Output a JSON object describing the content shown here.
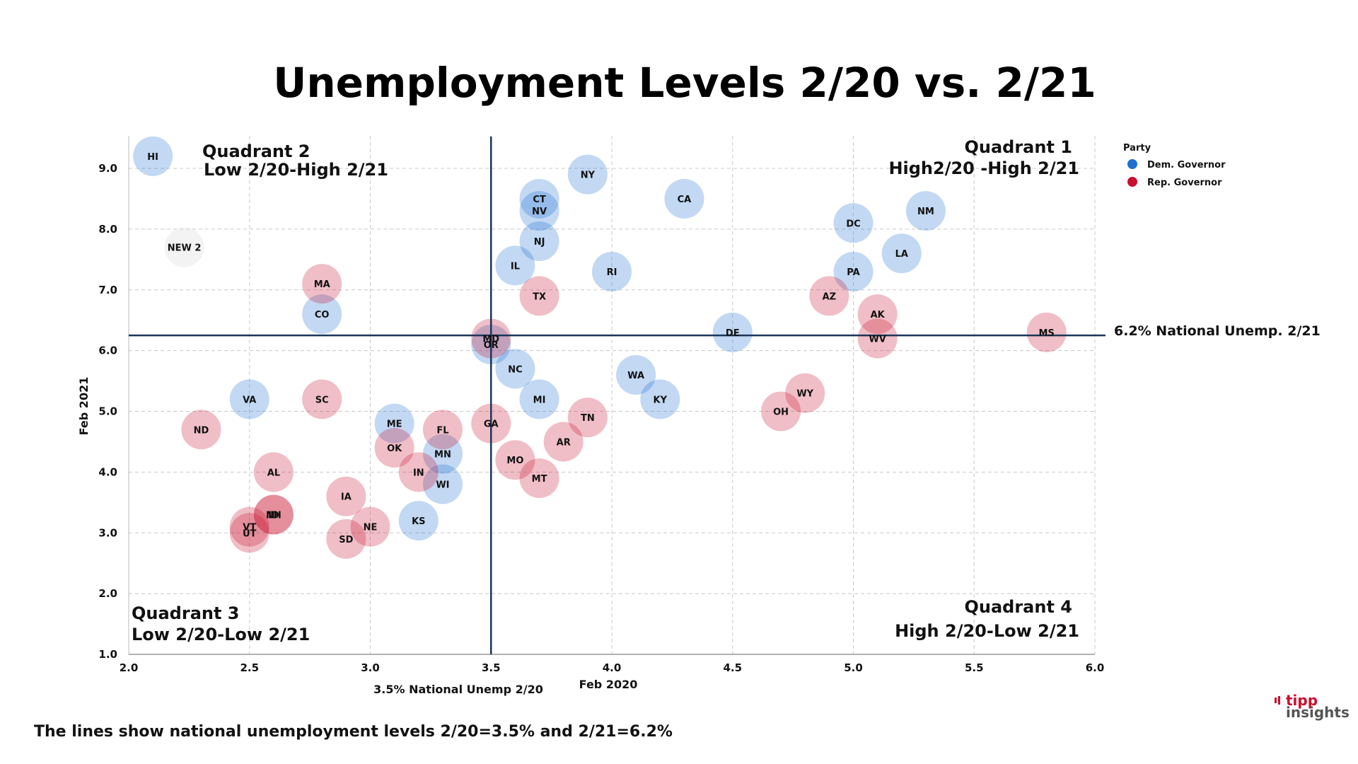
{
  "chart_data": {
    "type": "scatter",
    "title": "Unemployment Levels 2/20 vs. 2/21",
    "xlabel": "Feb 2020",
    "ylabel": "Feb 2021",
    "xlim": [
      2.0,
      6.0
    ],
    "ylim": [
      1.0,
      9.5
    ],
    "x_ticks": [
      "2.0",
      "2.5",
      "3.0",
      "3.5",
      "4.0",
      "4.5",
      "5.0",
      "5.5",
      "6.0"
    ],
    "y_ticks": [
      "1.0",
      "2.0",
      "3.0",
      "4.0",
      "5.0",
      "6.0",
      "7.0",
      "8.0",
      "9.0"
    ],
    "grid": true,
    "legend_title": "Party",
    "legend_position": "top-right",
    "series": [
      {
        "name": "Dem. Governor",
        "color": "#1f6fd1",
        "points": [
          {
            "label": "HI",
            "x": 2.1,
            "y": 9.2
          },
          {
            "label": "NY",
            "x": 3.9,
            "y": 8.9
          },
          {
            "label": "CT",
            "x": 3.7,
            "y": 8.5
          },
          {
            "label": "NV",
            "x": 3.7,
            "y": 8.3
          },
          {
            "label": "CA",
            "x": 4.3,
            "y": 8.5
          },
          {
            "label": "NM",
            "x": 5.3,
            "y": 8.3
          },
          {
            "label": "DC",
            "x": 5.0,
            "y": 8.1
          },
          {
            "label": "NJ",
            "x": 3.7,
            "y": 7.8
          },
          {
            "label": "LA",
            "x": 5.2,
            "y": 7.6
          },
          {
            "label": "IL",
            "x": 3.6,
            "y": 7.4
          },
          {
            "label": "RI",
            "x": 4.0,
            "y": 7.3
          },
          {
            "label": "PA",
            "x": 5.0,
            "y": 7.3
          },
          {
            "label": "CO",
            "x": 2.8,
            "y": 6.6
          },
          {
            "label": "DE",
            "x": 4.5,
            "y": 6.3
          },
          {
            "label": "OR",
            "x": 3.5,
            "y": 6.1
          },
          {
            "label": "NC",
            "x": 3.6,
            "y": 5.7
          },
          {
            "label": "WA",
            "x": 4.1,
            "y": 5.6
          },
          {
            "label": "VA",
            "x": 2.5,
            "y": 5.2
          },
          {
            "label": "MI",
            "x": 3.7,
            "y": 5.2
          },
          {
            "label": "KY",
            "x": 4.2,
            "y": 5.2
          },
          {
            "label": "ME",
            "x": 3.1,
            "y": 4.8
          },
          {
            "label": "MN",
            "x": 3.3,
            "y": 4.3
          },
          {
            "label": "WI",
            "x": 3.3,
            "y": 3.8
          },
          {
            "label": "KS",
            "x": 3.2,
            "y": 3.2
          }
        ]
      },
      {
        "name": "Rep. Governor",
        "color": "#c8102e",
        "points": [
          {
            "label": "MA",
            "x": 2.8,
            "y": 7.1
          },
          {
            "label": "TX",
            "x": 3.7,
            "y": 6.9
          },
          {
            "label": "AZ",
            "x": 4.9,
            "y": 6.9
          },
          {
            "label": "AK",
            "x": 5.1,
            "y": 6.6
          },
          {
            "label": "MD",
            "x": 3.5,
            "y": 6.2
          },
          {
            "label": "WV",
            "x": 5.1,
            "y": 6.2
          },
          {
            "label": "MS",
            "x": 5.8,
            "y": 6.3
          },
          {
            "label": "SC",
            "x": 2.8,
            "y": 5.2
          },
          {
            "label": "WY",
            "x": 4.8,
            "y": 5.3
          },
          {
            "label": "OH",
            "x": 4.7,
            "y": 5.0
          },
          {
            "label": "TN",
            "x": 3.9,
            "y": 4.9
          },
          {
            "label": "GA",
            "x": 3.5,
            "y": 4.8
          },
          {
            "label": "FL",
            "x": 3.3,
            "y": 4.7
          },
          {
            "label": "ND",
            "x": 2.3,
            "y": 4.7
          },
          {
            "label": "AR",
            "x": 3.8,
            "y": 4.5
          },
          {
            "label": "OK",
            "x": 3.1,
            "y": 4.4
          },
          {
            "label": "MO",
            "x": 3.6,
            "y": 4.2
          },
          {
            "label": "AL",
            "x": 2.6,
            "y": 4.0
          },
          {
            "label": "IN",
            "x": 3.2,
            "y": 4.0
          },
          {
            "label": "MT",
            "x": 3.7,
            "y": 3.9
          },
          {
            "label": "IA",
            "x": 2.9,
            "y": 3.6
          },
          {
            "label": "ID",
            "x": 2.6,
            "y": 3.3
          },
          {
            "label": "NH",
            "x": 2.6,
            "y": 3.3
          },
          {
            "label": "NE",
            "x": 3.0,
            "y": 3.1
          },
          {
            "label": "VT",
            "x": 2.5,
            "y": 3.1
          },
          {
            "label": "UT",
            "x": 2.5,
            "y": 3.0
          },
          {
            "label": "SD",
            "x": 2.9,
            "y": 2.9
          }
        ]
      },
      {
        "name": "",
        "color": "#dddddd",
        "points": [
          {
            "label": "NEW 2",
            "x": 2.23,
            "y": 7.7
          }
        ]
      }
    ],
    "reference_lines": [
      {
        "axis": "x",
        "value": 3.5,
        "label": "3.5% National Unemp 2/20"
      },
      {
        "axis": "y",
        "value": 6.25,
        "label": "6.2% National Unemp. 2/21"
      }
    ],
    "annotations": {
      "q1_title": "Quadrant 1",
      "q1_sub": "High2/20 -High 2/21",
      "q2_title": "Quadrant 2",
      "q2_sub": "Low 2/20-High 2/21",
      "q3_title": "Quadrant 3",
      "q3_sub": "Low 2/20-Low 2/21",
      "q4_title": "Quadrant 4",
      "q4_sub": "High 2/20-Low 2/21"
    }
  },
  "footnote": "The lines show national unemployment levels 2/20=3.5% and 2/21=6.2%",
  "logo": {
    "line1": "tipp",
    "line2": "insights",
    "color": "#c8102e"
  }
}
